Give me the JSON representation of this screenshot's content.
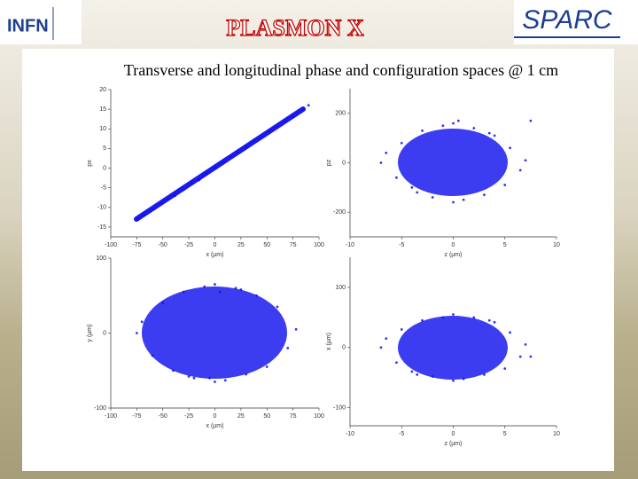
{
  "header": {
    "logo_left": "INFN",
    "title": "PLASMON X",
    "logo_right": "SPARC"
  },
  "subtitle": "Transverse and longitudinal phase and configuration spaces @ 1 cm",
  "chart_data": [
    {
      "type": "scatter",
      "x_label": "x (µm)",
      "y_label": "px",
      "color": "#1010f0",
      "x": [
        -75,
        -68,
        -60,
        -52,
        -45,
        -38,
        -30,
        -22,
        -15,
        -8,
        0,
        8,
        15,
        22,
        30,
        38,
        45,
        52,
        60,
        68,
        75,
        85,
        90
      ],
      "values": [
        -13,
        -12,
        -10.5,
        -9,
        -8,
        -7,
        -5.5,
        -4,
        -3,
        -1.5,
        0,
        1.5,
        3,
        4,
        5.5,
        7,
        8,
        9.5,
        10.5,
        12,
        13,
        15,
        16
      ],
      "xlim": [
        -100,
        100
      ],
      "ylim": [
        -17.5,
        20
      ],
      "xticks": [
        -100,
        -75,
        -50,
        -25,
        0,
        25,
        50,
        75,
        100
      ],
      "yticks": [
        -15,
        -10,
        -5,
        0,
        5,
        10,
        15,
        20
      ]
    },
    {
      "type": "scatter",
      "x_label": "z (µm)",
      "y_label": "pz",
      "color": "#1010f0",
      "x": [
        -7,
        -6.5,
        -5.5,
        -5,
        -4,
        -3,
        -2,
        -1,
        0,
        1,
        2,
        3,
        4,
        5,
        5.5,
        6.5,
        7,
        -3.5,
        3.5,
        0,
        0.5,
        7.5
      ],
      "values": [
        0,
        40,
        -60,
        80,
        -100,
        130,
        -140,
        150,
        160,
        -150,
        140,
        -130,
        110,
        -90,
        60,
        -30,
        10,
        -120,
        120,
        -160,
        170,
        170
      ],
      "xlim": [
        -10,
        10
      ],
      "ylim": [
        -300,
        300
      ],
      "xticks": [
        -10,
        -5,
        0,
        5,
        10
      ],
      "yticks": [
        -200,
        0,
        200
      ]
    },
    {
      "type": "scatter",
      "x_label": "x (µm)",
      "y_label": "y (µm)",
      "color": "#1010f0",
      "x": [
        -75,
        -70,
        -60,
        -50,
        -40,
        -30,
        -20,
        -10,
        0,
        10,
        20,
        30,
        40,
        50,
        60,
        70,
        78,
        -25,
        25,
        0,
        5,
        -5
      ],
      "values": [
        0,
        15,
        -30,
        40,
        -50,
        55,
        -60,
        62,
        65,
        -63,
        60,
        -55,
        50,
        -45,
        35,
        -20,
        5,
        -58,
        58,
        -65,
        55,
        -60
      ],
      "xlim": [
        -100,
        100
      ],
      "ylim": [
        -100,
        100
      ],
      "xticks": [
        -100,
        -75,
        -50,
        -25,
        0,
        25,
        50,
        75,
        100
      ],
      "yticks": [
        -100,
        0,
        100
      ]
    },
    {
      "type": "scatter",
      "x_label": "z (µm)",
      "y_label": "x (µm)",
      "color": "#1010f0",
      "x": [
        -7,
        -6.5,
        -5.5,
        -5,
        -4,
        -3,
        -2,
        -1,
        0,
        1,
        2,
        3,
        4,
        5,
        5.5,
        6.5,
        7,
        -3.5,
        3.5,
        0,
        7.5
      ],
      "values": [
        0,
        15,
        -25,
        30,
        -40,
        45,
        -48,
        50,
        55,
        -52,
        50,
        -45,
        42,
        -35,
        25,
        -15,
        5,
        -45,
        45,
        -55,
        -15
      ],
      "xlim": [
        -10,
        10
      ],
      "ylim": [
        -130,
        150
      ],
      "xticks": [
        -10,
        -5,
        0,
        5,
        10
      ],
      "yticks": [
        -100,
        0,
        100
      ]
    }
  ]
}
